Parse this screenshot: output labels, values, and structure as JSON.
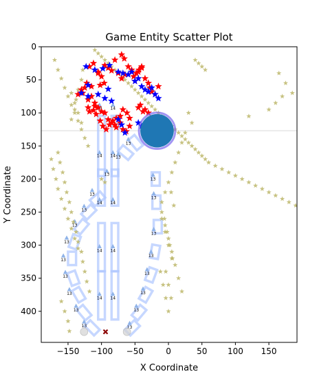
{
  "chart_data": {
    "type": "scatter",
    "title": "Game Entity Scatter Plot",
    "xlabel": "X Coordinate",
    "ylabel": "Y Coordinate",
    "xlim": [
      -190,
      192
    ],
    "ylim": [
      447,
      0
    ],
    "y_inverted": true,
    "grid": false,
    "legend": "none",
    "xticks": [
      -150,
      -100,
      -50,
      0,
      50,
      100,
      150
    ],
    "yticks": [
      0,
      50,
      100,
      150,
      200,
      250,
      300,
      350,
      400
    ],
    "reference_line_y": 127,
    "colors": {
      "red_star": "#ff0000",
      "blue_star": "#0000ff",
      "olive_star": "#bdb76b",
      "wall": "#aec6ff",
      "big_circle_fill": "#1f77b4",
      "big_circle_ring": "#7b68ee",
      "marker_dark": "#8b0000",
      "ghost": "#d3d3d3"
    },
    "big_circle": {
      "x": -17,
      "y": 127,
      "r": 25
    },
    "dark_marker": {
      "x": -94,
      "y": 431
    },
    "ghost_points": [
      {
        "x": -126,
        "y": 431
      },
      {
        "x": -62,
        "y": 431
      }
    ],
    "walls": [
      {
        "x": -105,
        "y": 105,
        "w": 10,
        "h": 90
      },
      {
        "x": -85,
        "y": 105,
        "w": 10,
        "h": 90
      },
      {
        "x": -105,
        "y": 186,
        "w": 10,
        "h": 54
      },
      {
        "x": -85,
        "y": 186,
        "w": 10,
        "h": 54
      },
      {
        "x": -105,
        "y": 267,
        "w": 10,
        "h": 72
      },
      {
        "x": -85,
        "y": 267,
        "w": 10,
        "h": 72
      },
      {
        "x": -105,
        "y": 340,
        "w": 10,
        "h": 72
      },
      {
        "x": -85,
        "y": 340,
        "w": 10,
        "h": 72
      },
      {
        "x": -112,
        "y": 220,
        "w": 12,
        "h": 20,
        "rot": 50
      },
      {
        "x": -125,
        "y": 240,
        "w": 12,
        "h": 20,
        "rot": 45
      },
      {
        "x": -136,
        "y": 262,
        "w": 12,
        "h": 20,
        "rot": 40
      },
      {
        "x": -146,
        "y": 285,
        "w": 12,
        "h": 20,
        "rot": 20
      },
      {
        "x": -150,
        "y": 310,
        "w": 12,
        "h": 20,
        "rot": 0
      },
      {
        "x": -148,
        "y": 340,
        "w": 12,
        "h": 20,
        "rot": -20
      },
      {
        "x": -140,
        "y": 365,
        "w": 12,
        "h": 20,
        "rot": -30
      },
      {
        "x": -132,
        "y": 392,
        "w": 12,
        "h": 20,
        "rot": -40
      },
      {
        "x": -120,
        "y": 415,
        "w": 12,
        "h": 20,
        "rot": -45
      },
      {
        "x": -25,
        "y": 190,
        "w": 12,
        "h": 20,
        "rot": 0
      },
      {
        "x": -24,
        "y": 225,
        "w": 12,
        "h": 20,
        "rot": 0
      },
      {
        "x": -22,
        "y": 262,
        "w": 12,
        "h": 20,
        "rot": 0
      },
      {
        "x": -26,
        "y": 300,
        "w": 12,
        "h": 20,
        "rot": 10
      },
      {
        "x": -32,
        "y": 335,
        "w": 12,
        "h": 20,
        "rot": 20
      },
      {
        "x": -40,
        "y": 365,
        "w": 12,
        "h": 20,
        "rot": 30
      },
      {
        "x": -50,
        "y": 392,
        "w": 12,
        "h": 20,
        "rot": 40
      },
      {
        "x": -60,
        "y": 415,
        "w": 12,
        "h": 20,
        "rot": 45
      },
      {
        "x": -55,
        "y": 135,
        "w": 12,
        "h": 20,
        "rot": -40
      },
      {
        "x": -70,
        "y": 150,
        "w": 12,
        "h": 20,
        "rot": -50
      }
    ],
    "labels": [
      {
        "x": -103,
        "y": 93,
        "text": "14"
      },
      {
        "x": -83,
        "y": 93,
        "text": "14"
      },
      {
        "x": -103,
        "y": 165,
        "text": "14"
      },
      {
        "x": -83,
        "y": 165,
        "text": "14"
      },
      {
        "x": -75,
        "y": 167,
        "text": "13"
      },
      {
        "x": -60,
        "y": 146,
        "text": "13"
      },
      {
        "x": -92,
        "y": 193,
        "text": "13"
      },
      {
        "x": -103,
        "y": 236,
        "text": "14"
      },
      {
        "x": -83,
        "y": 236,
        "text": "14"
      },
      {
        "x": -114,
        "y": 223,
        "text": "13"
      },
      {
        "x": -126,
        "y": 247,
        "text": "13"
      },
      {
        "x": -140,
        "y": 270,
        "text": "13"
      },
      {
        "x": -152,
        "y": 295,
        "text": "13"
      },
      {
        "x": -157,
        "y": 322,
        "text": "13"
      },
      {
        "x": -154,
        "y": 347,
        "text": "13"
      },
      {
        "x": -148,
        "y": 373,
        "text": "13"
      },
      {
        "x": -138,
        "y": 398,
        "text": "13"
      },
      {
        "x": -126,
        "y": 422,
        "text": "13"
      },
      {
        "x": -103,
        "y": 308,
        "text": "14"
      },
      {
        "x": -83,
        "y": 308,
        "text": "14"
      },
      {
        "x": -103,
        "y": 380,
        "text": "14"
      },
      {
        "x": -83,
        "y": 380,
        "text": "14"
      },
      {
        "x": -23,
        "y": 200,
        "text": "13"
      },
      {
        "x": -22,
        "y": 228,
        "text": "13"
      },
      {
        "x": -22,
        "y": 282,
        "text": "13"
      },
      {
        "x": -26,
        "y": 316,
        "text": "13"
      },
      {
        "x": -32,
        "y": 343,
        "text": "13"
      },
      {
        "x": -38,
        "y": 372,
        "text": "13"
      },
      {
        "x": -48,
        "y": 398,
        "text": "13"
      },
      {
        "x": -58,
        "y": 424,
        "text": "13"
      }
    ],
    "triangles": [
      {
        "x": -103,
        "y": 88
      },
      {
        "x": -83,
        "y": 88
      },
      {
        "x": -103,
        "y": 160
      },
      {
        "x": -83,
        "y": 160
      },
      {
        "x": -75,
        "y": 162
      },
      {
        "x": -60,
        "y": 140
      },
      {
        "x": -92,
        "y": 188
      },
      {
        "x": -103,
        "y": 231
      },
      {
        "x": -83,
        "y": 231
      },
      {
        "x": -114,
        "y": 217
      },
      {
        "x": -126,
        "y": 241
      },
      {
        "x": -140,
        "y": 264
      },
      {
        "x": -152,
        "y": 289
      },
      {
        "x": -157,
        "y": 316
      },
      {
        "x": -154,
        "y": 341
      },
      {
        "x": -148,
        "y": 367
      },
      {
        "x": -138,
        "y": 392
      },
      {
        "x": -126,
        "y": 416
      },
      {
        "x": -103,
        "y": 302
      },
      {
        "x": -83,
        "y": 302
      },
      {
        "x": -103,
        "y": 374
      },
      {
        "x": -83,
        "y": 374
      },
      {
        "x": -23,
        "y": 194
      },
      {
        "x": -22,
        "y": 222
      },
      {
        "x": -22,
        "y": 276
      },
      {
        "x": -26,
        "y": 310
      },
      {
        "x": -32,
        "y": 337
      },
      {
        "x": -38,
        "y": 366
      },
      {
        "x": -48,
        "y": 392
      },
      {
        "x": -58,
        "y": 418
      }
    ],
    "series": [
      {
        "color": "#ff0000",
        "x": [
          -118,
          -112,
          -105,
          -100,
          -95,
          -90,
          -85,
          -80,
          -75,
          -70,
          -65,
          -60,
          -55,
          -50,
          -45,
          -40,
          -35,
          -30,
          -28,
          -25,
          -20,
          -15,
          -122,
          -125,
          -128,
          -120,
          -115,
          -110,
          -105,
          -100,
          -95,
          -90,
          -85,
          -80,
          -78,
          -72,
          -68,
          -62,
          -58,
          -45,
          -42,
          -38,
          -35,
          -30,
          -120,
          -118,
          -112,
          -108,
          -102,
          -98,
          -93,
          -88,
          -83,
          -78,
          -72,
          -68,
          -63,
          -58,
          -52,
          -48,
          -44,
          -40,
          -70,
          -66,
          -96,
          -102,
          -110,
          -130,
          -135,
          -115,
          -105
        ],
        "y": [
          30,
          25,
          38,
          45,
          28,
          32,
          36,
          20,
          40,
          48,
          42,
          30,
          35,
          52,
          38,
          32,
          48,
          55,
          62,
          68,
          72,
          60,
          55,
          62,
          70,
          80,
          75,
          85,
          92,
          98,
          100,
          110,
          115,
          118,
          122,
          105,
          95,
          100,
          108,
          92,
          88,
          98,
          95,
          100,
          92,
          98,
          96,
          102,
          112,
          120,
          125,
          118,
          112,
          108,
          115,
          125,
          128,
          120,
          45,
          40,
          35,
          30,
          12,
          18,
          55,
          58,
          90,
          65,
          72,
          60,
          40
        ]
      },
      {
        "color": "#0000ff",
        "x": [
          -123,
          -110,
          -98,
          -88,
          -75,
          -68,
          -60,
          -55,
          -50,
          -45,
          -40,
          -35,
          -30,
          -25,
          -20,
          -15,
          -130,
          -120,
          -105,
          -95,
          -85,
          -75,
          -70,
          -65,
          -45,
          -40,
          -35,
          -30,
          -120,
          -90
        ],
        "y": [
          30,
          35,
          33,
          28,
          38,
          40,
          42,
          38,
          52,
          48,
          60,
          65,
          68,
          62,
          72,
          78,
          70,
          75,
          72,
          78,
          82,
          110,
          118,
          130,
          115,
          120,
          125,
          128,
          58,
          64
        ]
      },
      {
        "color": "#bdb76b",
        "x": [
          -170,
          -165,
          -160,
          -155,
          -150,
          -145,
          -140,
          -135,
          -130,
          -125,
          -120,
          -165,
          -162,
          -158,
          -155,
          -152,
          -148,
          -145,
          -142,
          -138,
          -135,
          -130,
          -128,
          -125,
          -122,
          -118,
          -160,
          -155,
          -150,
          -148,
          -145,
          -140,
          -138,
          -135,
          -130,
          -128,
          -175,
          -172,
          -168,
          -165,
          -160,
          -155,
          -150,
          -145,
          -140,
          -135,
          -110,
          -105,
          -100,
          -95,
          -90,
          -85,
          -80,
          -75,
          -70,
          -65,
          -60,
          -55,
          -50,
          -45,
          -40,
          -35,
          -30,
          -25,
          -20,
          -15,
          -10,
          -5,
          0,
          5,
          10,
          15,
          20,
          25,
          30,
          35,
          40,
          45,
          50,
          55,
          60,
          70,
          80,
          90,
          100,
          110,
          120,
          130,
          140,
          150,
          160,
          170,
          180,
          190,
          -10,
          -5,
          0,
          5,
          10,
          15,
          20,
          -10,
          -5,
          0,
          5,
          -12,
          -8,
          -4,
          0,
          4,
          8,
          -6,
          -2,
          2,
          6,
          -4,
          0,
          4,
          -145,
          -140,
          -135,
          -130,
          120,
          150,
          160,
          170,
          40,
          45,
          50,
          55,
          30,
          35,
          25,
          20,
          15,
          10,
          5,
          0,
          -5,
          -10,
          165,
          175,
          185,
          -100,
          -95
        ],
        "y": [
          20,
          35,
          48,
          62,
          75,
          88,
          100,
          112,
          125,
          138,
          150,
          160,
          175,
          190,
          205,
          220,
          235,
          250,
          265,
          280,
          295,
          310,
          325,
          340,
          355,
          370,
          385,
          400,
          415,
          430,
          110,
          95,
          80,
          65,
          50,
          35,
          170,
          185,
          200,
          215,
          230,
          245,
          260,
          275,
          290,
          305,
          5,
          10,
          15,
          20,
          25,
          30,
          35,
          40,
          45,
          50,
          55,
          60,
          65,
          70,
          75,
          80,
          85,
          90,
          95,
          100,
          105,
          110,
          115,
          120,
          125,
          130,
          135,
          140,
          145,
          150,
          155,
          160,
          165,
          170,
          175,
          180,
          185,
          190,
          195,
          200,
          205,
          210,
          215,
          220,
          225,
          230,
          235,
          240,
          250,
          270,
          290,
          310,
          330,
          350,
          370,
          260,
          280,
          300,
          320,
          340,
          360,
          380,
          400,
          220,
          240,
          260,
          280,
          300,
          320,
          340,
          360,
          380,
          70,
          85,
          100,
          115,
          105,
          95,
          85,
          75,
          20,
          25,
          30,
          35,
          100,
          115,
          130,
          145,
          160,
          175,
          190,
          205,
          220,
          235,
          40,
          55,
          70,
          200,
          205
        ]
      }
    ]
  }
}
